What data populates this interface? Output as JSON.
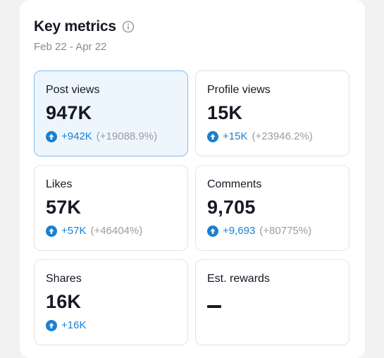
{
  "header": {
    "title": "Key metrics",
    "date_range": "Feb 22 - Apr 22"
  },
  "metrics": [
    {
      "label": "Post views",
      "value": "947K",
      "change": "+942K",
      "change_pct": "(+19088.9%)",
      "selected": true
    },
    {
      "label": "Profile views",
      "value": "15K",
      "change": "+15K",
      "change_pct": "(+23946.2%)",
      "selected": false
    },
    {
      "label": "Likes",
      "value": "57K",
      "change": "+57K",
      "change_pct": "(+46404%)",
      "selected": false
    },
    {
      "label": "Comments",
      "value": "9,705",
      "change": "+9,693",
      "change_pct": "(+80775%)",
      "selected": false
    },
    {
      "label": "Shares",
      "value": "16K",
      "change": "+16K",
      "change_pct": "",
      "selected": false
    },
    {
      "label": "Est. rewards",
      "value": "",
      "change": "",
      "change_pct": "",
      "selected": false
    }
  ],
  "colors": {
    "accent_blue": "#1b7fd1",
    "selected_bg": "#eef6fd",
    "selected_border": "#7ebcf0",
    "muted_text": "#9b9ca1"
  },
  "icons": {
    "info": "info-circle-icon",
    "increase": "arrow-up-circle-icon"
  }
}
